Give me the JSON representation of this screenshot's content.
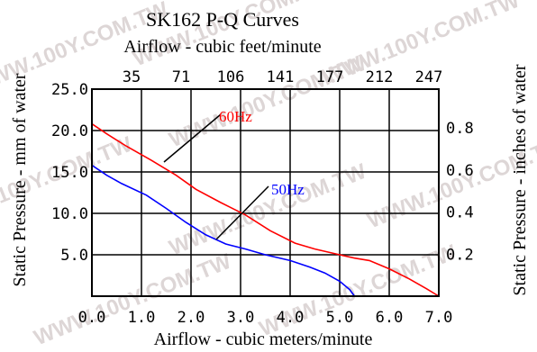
{
  "chart_data": {
    "type": "line",
    "title": "SK162 P-Q Curves",
    "top_axis_label": "Airflow - cubic feet/minute",
    "top_ticks": [
      "35",
      "71",
      "106",
      "141",
      "177",
      "212",
      "247"
    ],
    "xlabel": "Airflow - cubic meters/minute",
    "x_ticks": [
      "0.0",
      "1.0",
      "2.0",
      "3.0",
      "4.0",
      "5.0",
      "6.0",
      "7.0"
    ],
    "xlim": [
      0,
      7
    ],
    "ylabel": "Static Pressure - mm of water",
    "y_ticks": [
      "5.0",
      "10.0",
      "15.0",
      "20.0",
      "25.0"
    ],
    "ylim": [
      0,
      25
    ],
    "y2label": "Static Pressure - inches of water",
    "y2_ticks": [
      "0.2",
      "0.4",
      "0.6",
      "0.8"
    ],
    "grid": true,
    "series": [
      {
        "name": "60Hz",
        "color": "#ff0000",
        "x": [
          0,
          0.3,
          0.7,
          1.2,
          1.7,
          2.1,
          2.6,
          3.1,
          3.6,
          4.1,
          4.5,
          5.0,
          5.3,
          5.6,
          6.0,
          6.4,
          6.75,
          7.0
        ],
        "y": [
          20.8,
          19.6,
          18.1,
          16.4,
          14.6,
          12.9,
          11.3,
          9.8,
          7.9,
          6.4,
          5.7,
          5.0,
          4.6,
          4.3,
          3.3,
          2.1,
          0.9,
          0.0
        ]
      },
      {
        "name": "50Hz",
        "color": "#0000ff",
        "x": [
          0,
          0.3,
          0.6,
          1.1,
          1.5,
          1.9,
          2.3,
          2.7,
          3.1,
          3.5,
          4.0,
          4.4,
          4.7,
          5.0,
          5.2,
          5.3
        ],
        "y": [
          15.8,
          14.6,
          13.6,
          12.2,
          10.6,
          8.9,
          7.4,
          6.3,
          5.7,
          5.0,
          4.3,
          3.5,
          2.8,
          1.8,
          0.8,
          0.0
        ]
      }
    ]
  },
  "watermark": "WWW.100Y.COM.TW"
}
